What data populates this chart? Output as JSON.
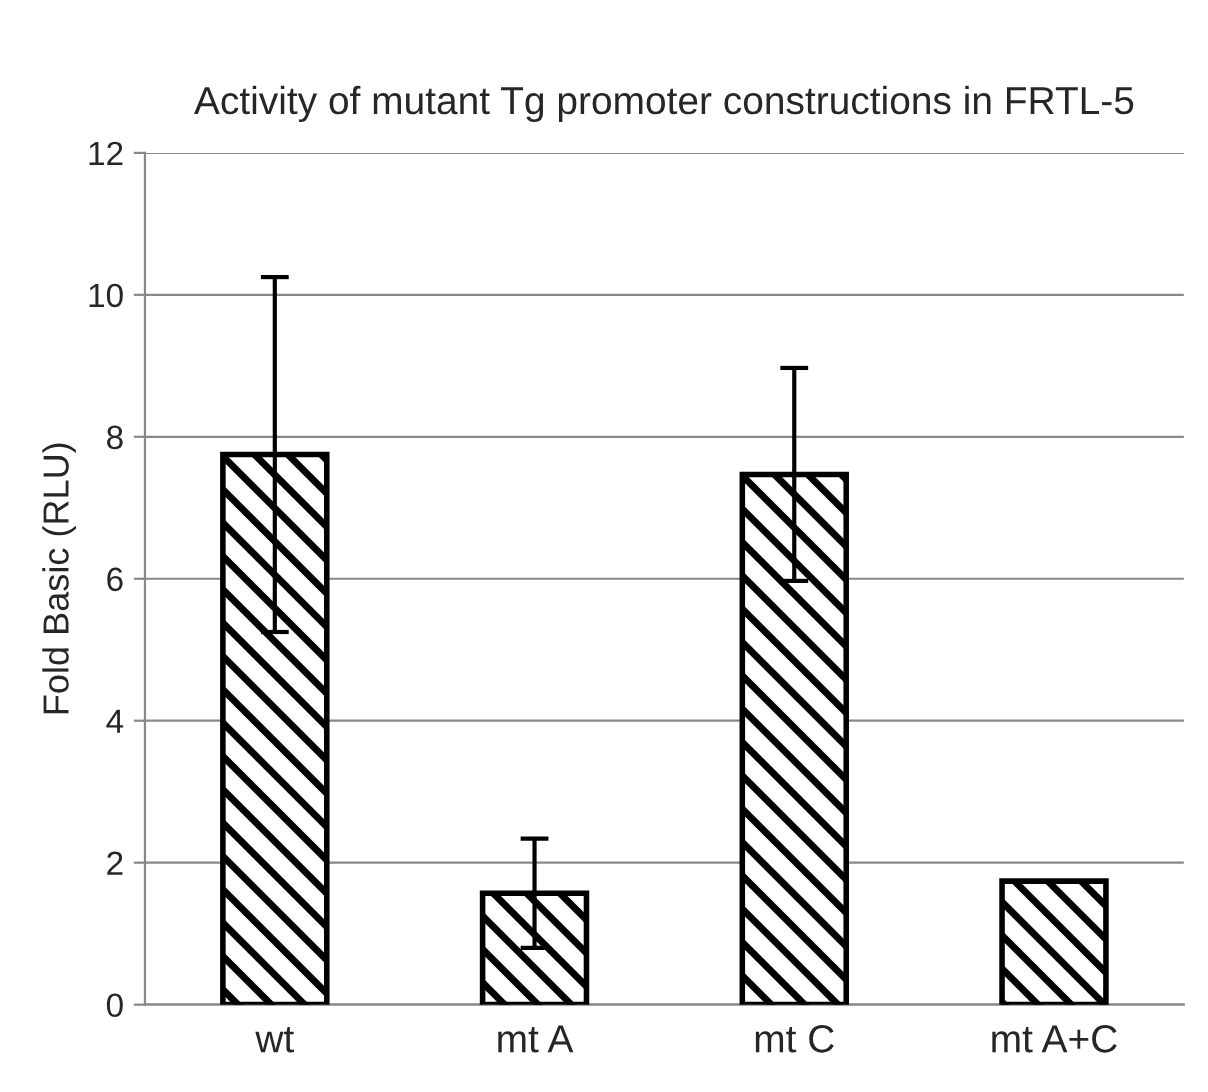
{
  "chart_data": {
    "type": "bar",
    "title": "Activity of mutant Tg promoter constructions in FRTL-5",
    "ylabel": "Fold Basic (RLU)",
    "categories": [
      "wt",
      "mt A",
      "mt C",
      "mt A+C"
    ],
    "values": [
      7.75,
      1.57,
      7.47,
      1.74
    ],
    "errors": [
      2.5,
      0.77,
      1.5,
      null
    ],
    "color": "#000000",
    "ylim": [
      0,
      12
    ],
    "yticks": [
      0,
      2,
      4,
      6,
      8,
      10,
      12
    ],
    "grid": "y"
  }
}
